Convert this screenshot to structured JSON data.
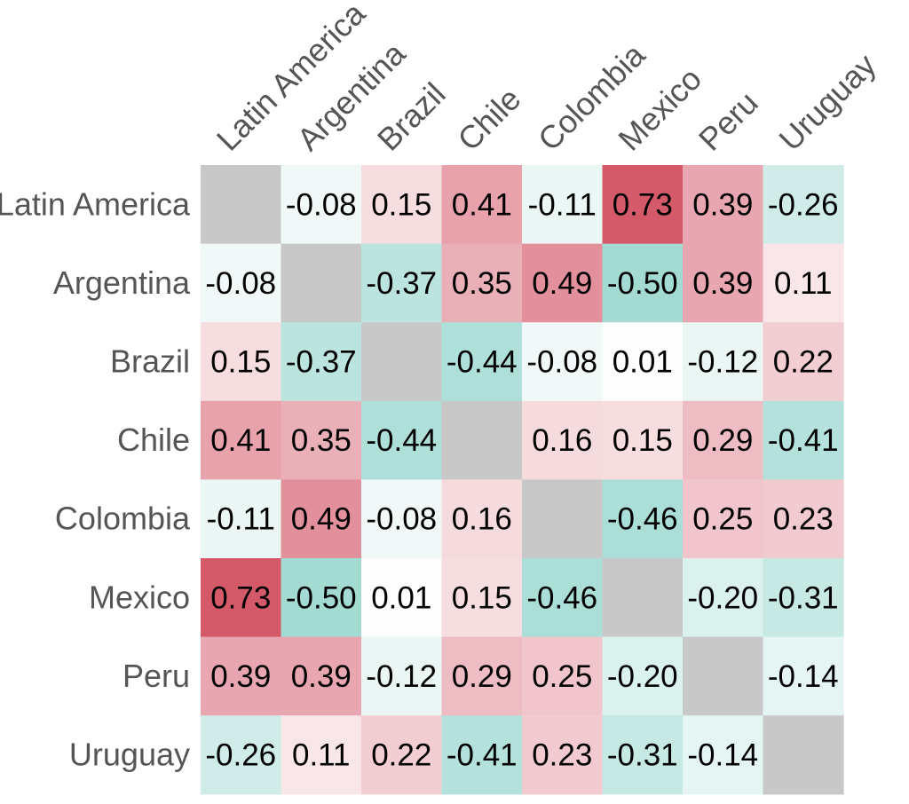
{
  "chart_data": {
    "type": "heatmap",
    "title": "",
    "xlabel": "",
    "ylabel": "",
    "categories": [
      "Latin America",
      "Argentina",
      "Brazil",
      "Chile",
      "Colombia",
      "Mexico",
      "Peru",
      "Uruguay"
    ],
    "values": [
      [
        null,
        -0.08,
        0.15,
        0.41,
        -0.11,
        0.73,
        0.39,
        -0.26
      ],
      [
        -0.08,
        null,
        -0.37,
        0.35,
        0.49,
        -0.5,
        0.39,
        0.11
      ],
      [
        0.15,
        -0.37,
        null,
        -0.44,
        -0.08,
        0.01,
        -0.12,
        0.22
      ],
      [
        0.41,
        0.35,
        -0.44,
        null,
        0.16,
        0.15,
        0.29,
        -0.41
      ],
      [
        -0.11,
        0.49,
        -0.08,
        0.16,
        null,
        -0.46,
        0.25,
        0.23
      ],
      [
        0.73,
        -0.5,
        0.01,
        0.15,
        -0.46,
        null,
        -0.2,
        -0.31
      ],
      [
        0.39,
        0.39,
        -0.12,
        0.29,
        0.25,
        -0.2,
        null,
        -0.14
      ],
      [
        -0.26,
        0.11,
        0.22,
        -0.41,
        0.23,
        -0.31,
        -0.14,
        null
      ]
    ],
    "value_format": "0.00",
    "colormap": {
      "negative": "#6cc5b8",
      "zero": "#ffffff",
      "positive": "#d04a5c",
      "missing": "#c8c8c8"
    },
    "vlim": [
      -1,
      1
    ],
    "grid": false,
    "legend": "none"
  }
}
